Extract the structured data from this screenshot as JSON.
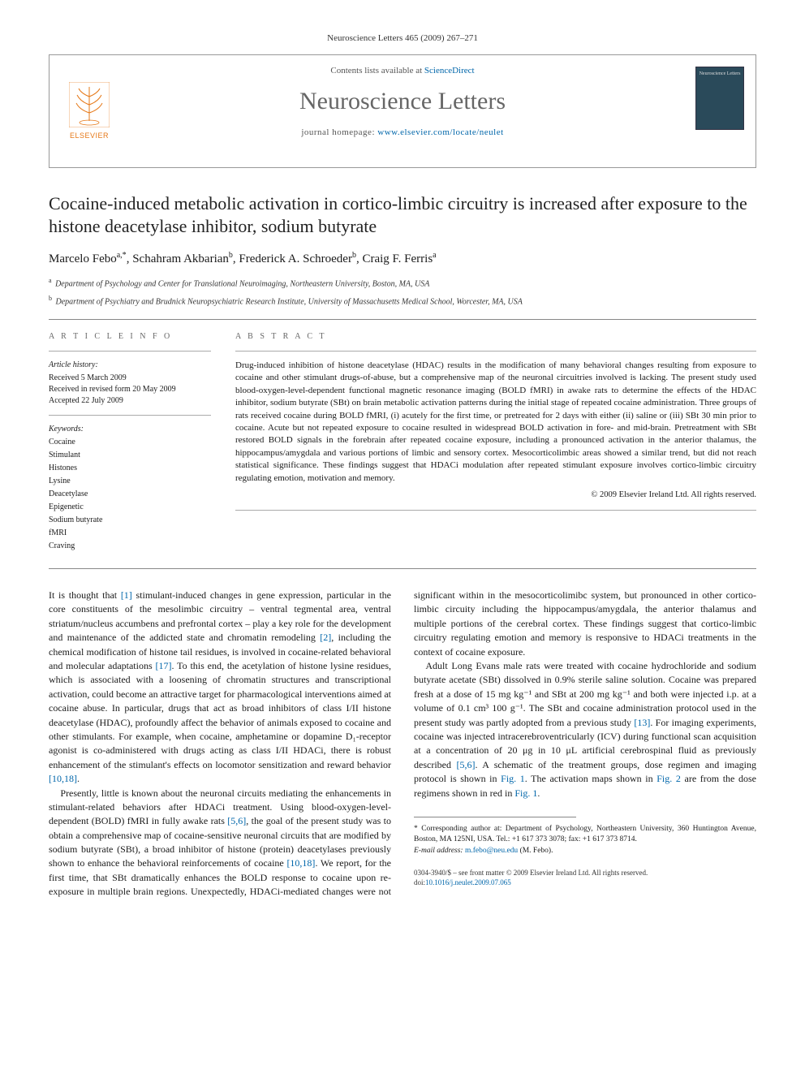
{
  "meta": {
    "citation": "Neuroscience Letters 465 (2009) 267–271",
    "contents_line_prefix": "Contents lists available at ",
    "contents_link": "ScienceDirect",
    "journal_name": "Neuroscience Letters",
    "homepage_prefix": "journal homepage: ",
    "homepage_url": "www.elsevier.com/locate/neulet",
    "publisher": "ELSEVIER",
    "cover_label": "Neuroscience Letters"
  },
  "title": "Cocaine-induced metabolic activation in cortico-limbic circuitry is increased after exposure to the histone deacetylase inhibitor, sodium butyrate",
  "authors_html": "Marcelo Febo<sup>a,*</sup>, Schahram Akbarian<sup>b</sup>, Frederick A. Schroeder<sup>b</sup>, Craig F. Ferris<sup>a</sup>",
  "affiliations": [
    {
      "sup": "a",
      "text": "Department of Psychology and Center for Translational Neuroimaging, Northeastern University, Boston, MA, USA"
    },
    {
      "sup": "b",
      "text": "Department of Psychiatry and Brudnick Neuropsychiatric Research Institute, University of Massachusetts Medical School, Worcester, MA, USA"
    }
  ],
  "info": {
    "heading": "A R T I C L E   I N F O",
    "history_label": "Article history:",
    "received": "Received 5 March 2009",
    "revised": "Received in revised form 20 May 2009",
    "accepted": "Accepted 22 July 2009",
    "keywords_label": "Keywords:",
    "keywords": [
      "Cocaine",
      "Stimulant",
      "Histones",
      "Lysine",
      "Deacetylase",
      "Epigenetic",
      "Sodium butyrate",
      "fMRI",
      "Craving"
    ]
  },
  "abstract": {
    "heading": "A B S T R A C T",
    "text": "Drug-induced inhibition of histone deacetylase (HDAC) results in the modification of many behavioral changes resulting from exposure to cocaine and other stimulant drugs-of-abuse, but a comprehensive map of the neuronal circuitries involved is lacking. The present study used blood-oxygen-level-dependent functional magnetic resonance imaging (BOLD fMRI) in awake rats to determine the effects of the HDAC inhibitor, sodium butyrate (SBt) on brain metabolic activation patterns during the initial stage of repeated cocaine administration. Three groups of rats received cocaine during BOLD fMRI, (i) acutely for the first time, or pretreated for 2 days with either (ii) saline or (iii) SBt 30 min prior to cocaine. Acute but not repeated exposure to cocaine resulted in widespread BOLD activation in fore- and mid-brain. Pretreatment with SBt restored BOLD signals in the forebrain after repeated cocaine exposure, including a pronounced activation in the anterior thalamus, the hippocampus/amygdala and various portions of limbic and sensory cortex. Mesocorticolimbic areas showed a similar trend, but did not reach statistical significance. These findings suggest that HDACi modulation after repeated stimulant exposure involves cortico-limbic circuitry regulating emotion, motivation and memory.",
    "copyright": "© 2009 Elsevier Ireland Ltd. All rights reserved."
  },
  "body": {
    "p1": "It is thought that [1] stimulant-induced changes in gene expression, particular in the core constituents of the mesolimbic circuitry – ventral tegmental area, ventral striatum/nucleus accumbens and prefrontal cortex – play a key role for the development and maintenance of the addicted state and chromatin remodeling [2], including the chemical modification of histone tail residues, is involved in cocaine-related behavioral and molecular adaptations [17]. To this end, the acetylation of histone lysine residues, which is associated with a loosening of chromatin structures and transcriptional activation, could become an attractive target for pharmacological interventions aimed at cocaine abuse. In particular, drugs that act as broad inhibitors of class I/II histone deacetylase (HDAC), profoundly affect the behavior of animals exposed to cocaine and other stimulants. For example, when cocaine, amphetamine or dopamine D₁-receptor agonist is co-administered with drugs acting as class I/II HDACi, there is robust enhancement of the stimulant's effects on locomotor sensitization and reward behavior [10,18].",
    "p2": "Presently, little is known about the neuronal circuits mediating the enhancements in stimulant-related behaviors after HDACi treatment. Using blood-oxygen-level-dependent (BOLD) fMRI in fully awake rats [5,6], the goal of the present study was to obtain a comprehensive map of cocaine-sensitive neuronal circuits that are modified by sodium butyrate (SBt), a broad inhibitor of histone (protein) deacetylases previously shown to enhance the behavioral reinforcements of cocaine [10,18]. We report, for the first time, that SBt dramatically enhances the BOLD response to cocaine upon re-exposure in multiple brain regions. Unexpectedly, HDACi-mediated changes were not significant within in the mesocorticolimibc system, but pronounced in other cortico-limbic circuity including the hippocampus/amygdala, the anterior thalamus and multiple portions of the cerebral cortex. These findings suggest that cortico-limbic circuitry regulating emotion and memory is responsive to HDACi treatments in the context of cocaine exposure.",
    "p3": "Adult Long Evans male rats were treated with cocaine hydrochloride and sodium butyrate acetate (SBt) dissolved in 0.9% sterile saline solution. Cocaine was prepared fresh at a dose of 15 mg kg⁻¹ and SBt at 200 mg kg⁻¹ and both were injected i.p. at a volume of 0.1 cm³ 100 g⁻¹. The SBt and cocaine administration protocol used in the present study was partly adopted from a previous study [13]. For imaging experiments, cocaine was injected intracerebroventricularly (ICV) during functional scan acquisition at a concentration of 20 μg in 10 μL artificial cerebrospinal fluid as previously described [5,6]. A schematic of the treatment groups, dose regimen and imaging protocol is shown in Fig. 1. The activation maps shown in Fig. 2 are from the dose regimens shown in red in Fig. 1."
  },
  "footnotes": {
    "corr": "* Corresponding author at: Department of Psychology, Northeastern University, 360 Huntington Avenue, Boston, MA 125NI, USA. Tel.: +1 617 373 3078; fax: +1 617 373 8714.",
    "email_label": "E-mail address: ",
    "email": "m.febo@neu.edu",
    "email_suffix": " (M. Febo)."
  },
  "bottom": {
    "issn": "0304-3940/$ – see front matter © 2009 Elsevier Ireland Ltd. All rights reserved.",
    "doi_label": "doi:",
    "doi": "10.1016/j.neulet.2009.07.065"
  },
  "colors": {
    "link": "#0066aa",
    "publisher_orange": "#e67817",
    "rule": "#888888",
    "heading_gray": "#666666"
  }
}
